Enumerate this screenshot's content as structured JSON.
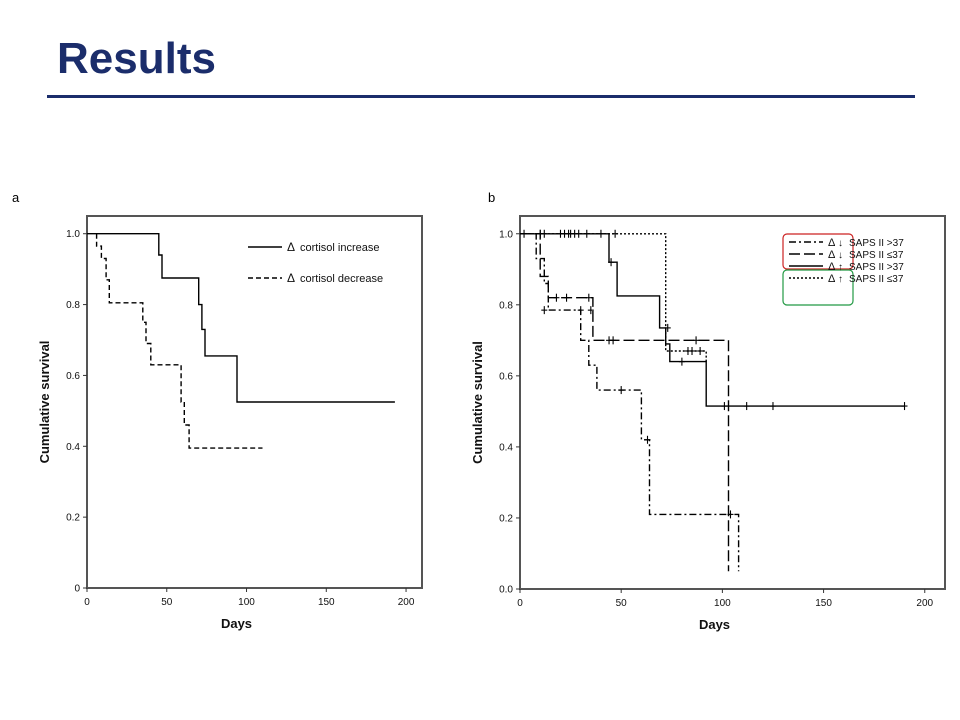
{
  "slide": {
    "title": "Results"
  },
  "chart_data": [
    {
      "type": "line",
      "panel_label": "a",
      "xlabel": "Days",
      "ylabel": "Cumulative survival",
      "xlim": [
        0,
        210
      ],
      "ylim": [
        0,
        1.05
      ],
      "x_ticks": [
        0,
        50,
        100,
        150,
        200
      ],
      "y_ticks": [
        0,
        0.2,
        0.4,
        0.6,
        0.8,
        1.0
      ],
      "x_tick_labels": [
        "0",
        "50",
        "100",
        "150",
        "200"
      ],
      "y_tick_labels": [
        "0",
        "0.2",
        "0.4",
        "0.6",
        "0.8",
        "1.0"
      ],
      "grid": false,
      "legend_position": "top-right",
      "legend_symbol": "Δ",
      "series": [
        {
          "name": "cortisol increase",
          "dash": "solid",
          "color": "#000000",
          "x": [
            0,
            45,
            45,
            47,
            47,
            70,
            70,
            72,
            72,
            74,
            74,
            94,
            94,
            193
          ],
          "y": [
            1.0,
            1.0,
            0.94,
            0.94,
            0.875,
            0.875,
            0.8,
            0.8,
            0.73,
            0.73,
            0.655,
            0.655,
            0.525,
            0.525
          ]
        },
        {
          "name": "cortisol decrease",
          "dash": "dashed",
          "color": "#000000",
          "x": [
            6,
            6,
            9,
            9,
            12,
            12,
            14,
            14,
            35,
            35,
            37,
            37,
            40,
            40,
            43,
            43,
            59,
            59,
            61,
            61,
            64,
            64,
            110
          ],
          "y": [
            1.0,
            0.965,
            0.965,
            0.93,
            0.93,
            0.87,
            0.87,
            0.805,
            0.805,
            0.75,
            0.75,
            0.69,
            0.69,
            0.63,
            0.63,
            0.63,
            0.63,
            0.525,
            0.525,
            0.46,
            0.46,
            0.395,
            0.395
          ]
        }
      ]
    },
    {
      "type": "line",
      "panel_label": "b",
      "xlabel": "Days",
      "ylabel": "Cumulative survival",
      "xlim": [
        0,
        210
      ],
      "ylim": [
        0,
        1.05
      ],
      "x_ticks": [
        0,
        50,
        100,
        150,
        200
      ],
      "y_ticks": [
        0,
        0.2,
        0.4,
        0.6,
        0.8,
        1.0
      ],
      "x_tick_labels": [
        "0",
        "50",
        "100",
        "150",
        "200"
      ],
      "y_tick_labels": [
        "0.0",
        "0.2",
        "0.4",
        "0.6",
        "0.8",
        "1.0"
      ],
      "grid": false,
      "legend_position": "top-right",
      "legend_symbol": "Δ",
      "legend_highlight_colors": [
        "#cc2222",
        "#229944"
      ],
      "series": [
        {
          "name": "SAPS II >37",
          "arrow": "↓",
          "dash": "dashdot",
          "color": "#000000",
          "x": [
            0,
            8,
            8,
            12,
            12,
            14,
            14,
            30,
            30,
            34,
            34,
            38,
            38,
            40,
            40,
            60,
            60,
            62,
            62,
            64,
            64,
            108,
            108
          ],
          "y": [
            1.0,
            1.0,
            0.93,
            0.93,
            0.86,
            0.86,
            0.785,
            0.785,
            0.7,
            0.7,
            0.63,
            0.63,
            0.56,
            0.56,
            0.56,
            0.56,
            0.42,
            0.42,
            0.42,
            0.42,
            0.21,
            0.21,
            0.05
          ],
          "censored": [
            [
              10,
              1.0
            ],
            [
              12,
              0.785
            ],
            [
              30,
              0.785
            ],
            [
              35,
              0.785
            ],
            [
              50,
              0.56
            ],
            [
              63,
              0.42
            ],
            [
              104,
              0.21
            ]
          ]
        },
        {
          "name": "SAPS II ≤37",
          "arrow": "↓",
          "dash": "longdash",
          "color": "#000000",
          "x": [
            0,
            10,
            10,
            14,
            14,
            36,
            36,
            103,
            103
          ],
          "y": [
            1.0,
            1.0,
            0.88,
            0.88,
            0.82,
            0.82,
            0.7,
            0.7,
            0.05
          ],
          "censored": [
            [
              10,
              1.0
            ],
            [
              18,
              0.82
            ],
            [
              23,
              0.82
            ],
            [
              34,
              0.82
            ],
            [
              44,
              0.7
            ],
            [
              46,
              0.7
            ],
            [
              87,
              0.7
            ]
          ]
        },
        {
          "name": "SAPS II >37",
          "arrow": "↑",
          "dash": "solid",
          "color": "#000000",
          "x": [
            0,
            44,
            44,
            48,
            48,
            69,
            69,
            72,
            72,
            74,
            74,
            92,
            92,
            190
          ],
          "y": [
            1.0,
            1.0,
            0.92,
            0.92,
            0.825,
            0.825,
            0.735,
            0.735,
            0.69,
            0.69,
            0.64,
            0.64,
            0.515,
            0.515
          ],
          "censored": [
            [
              12,
              1.0
            ],
            [
              45,
              0.92
            ],
            [
              73,
              0.735
            ],
            [
              80,
              0.64
            ],
            [
              101,
              0.515
            ],
            [
              112,
              0.515
            ],
            [
              125,
              0.515
            ],
            [
              190,
              0.515
            ]
          ]
        },
        {
          "name": "SAPS II ≤37",
          "arrow": "↑",
          "dash": "dotted",
          "color": "#000000",
          "x": [
            0,
            72,
            72,
            92,
            92
          ],
          "y": [
            1.0,
            1.0,
            0.67,
            0.67,
            0.64
          ],
          "censored": [
            [
              2,
              1.0
            ],
            [
              20,
              1.0
            ],
            [
              22,
              1.0
            ],
            [
              24,
              1.0
            ],
            [
              25,
              1.0
            ],
            [
              27,
              1.0
            ],
            [
              29,
              1.0
            ],
            [
              33,
              1.0
            ],
            [
              40,
              1.0
            ],
            [
              47,
              1.0
            ],
            [
              83,
              0.67
            ],
            [
              85,
              0.67
            ],
            [
              89,
              0.67
            ]
          ]
        }
      ]
    }
  ]
}
